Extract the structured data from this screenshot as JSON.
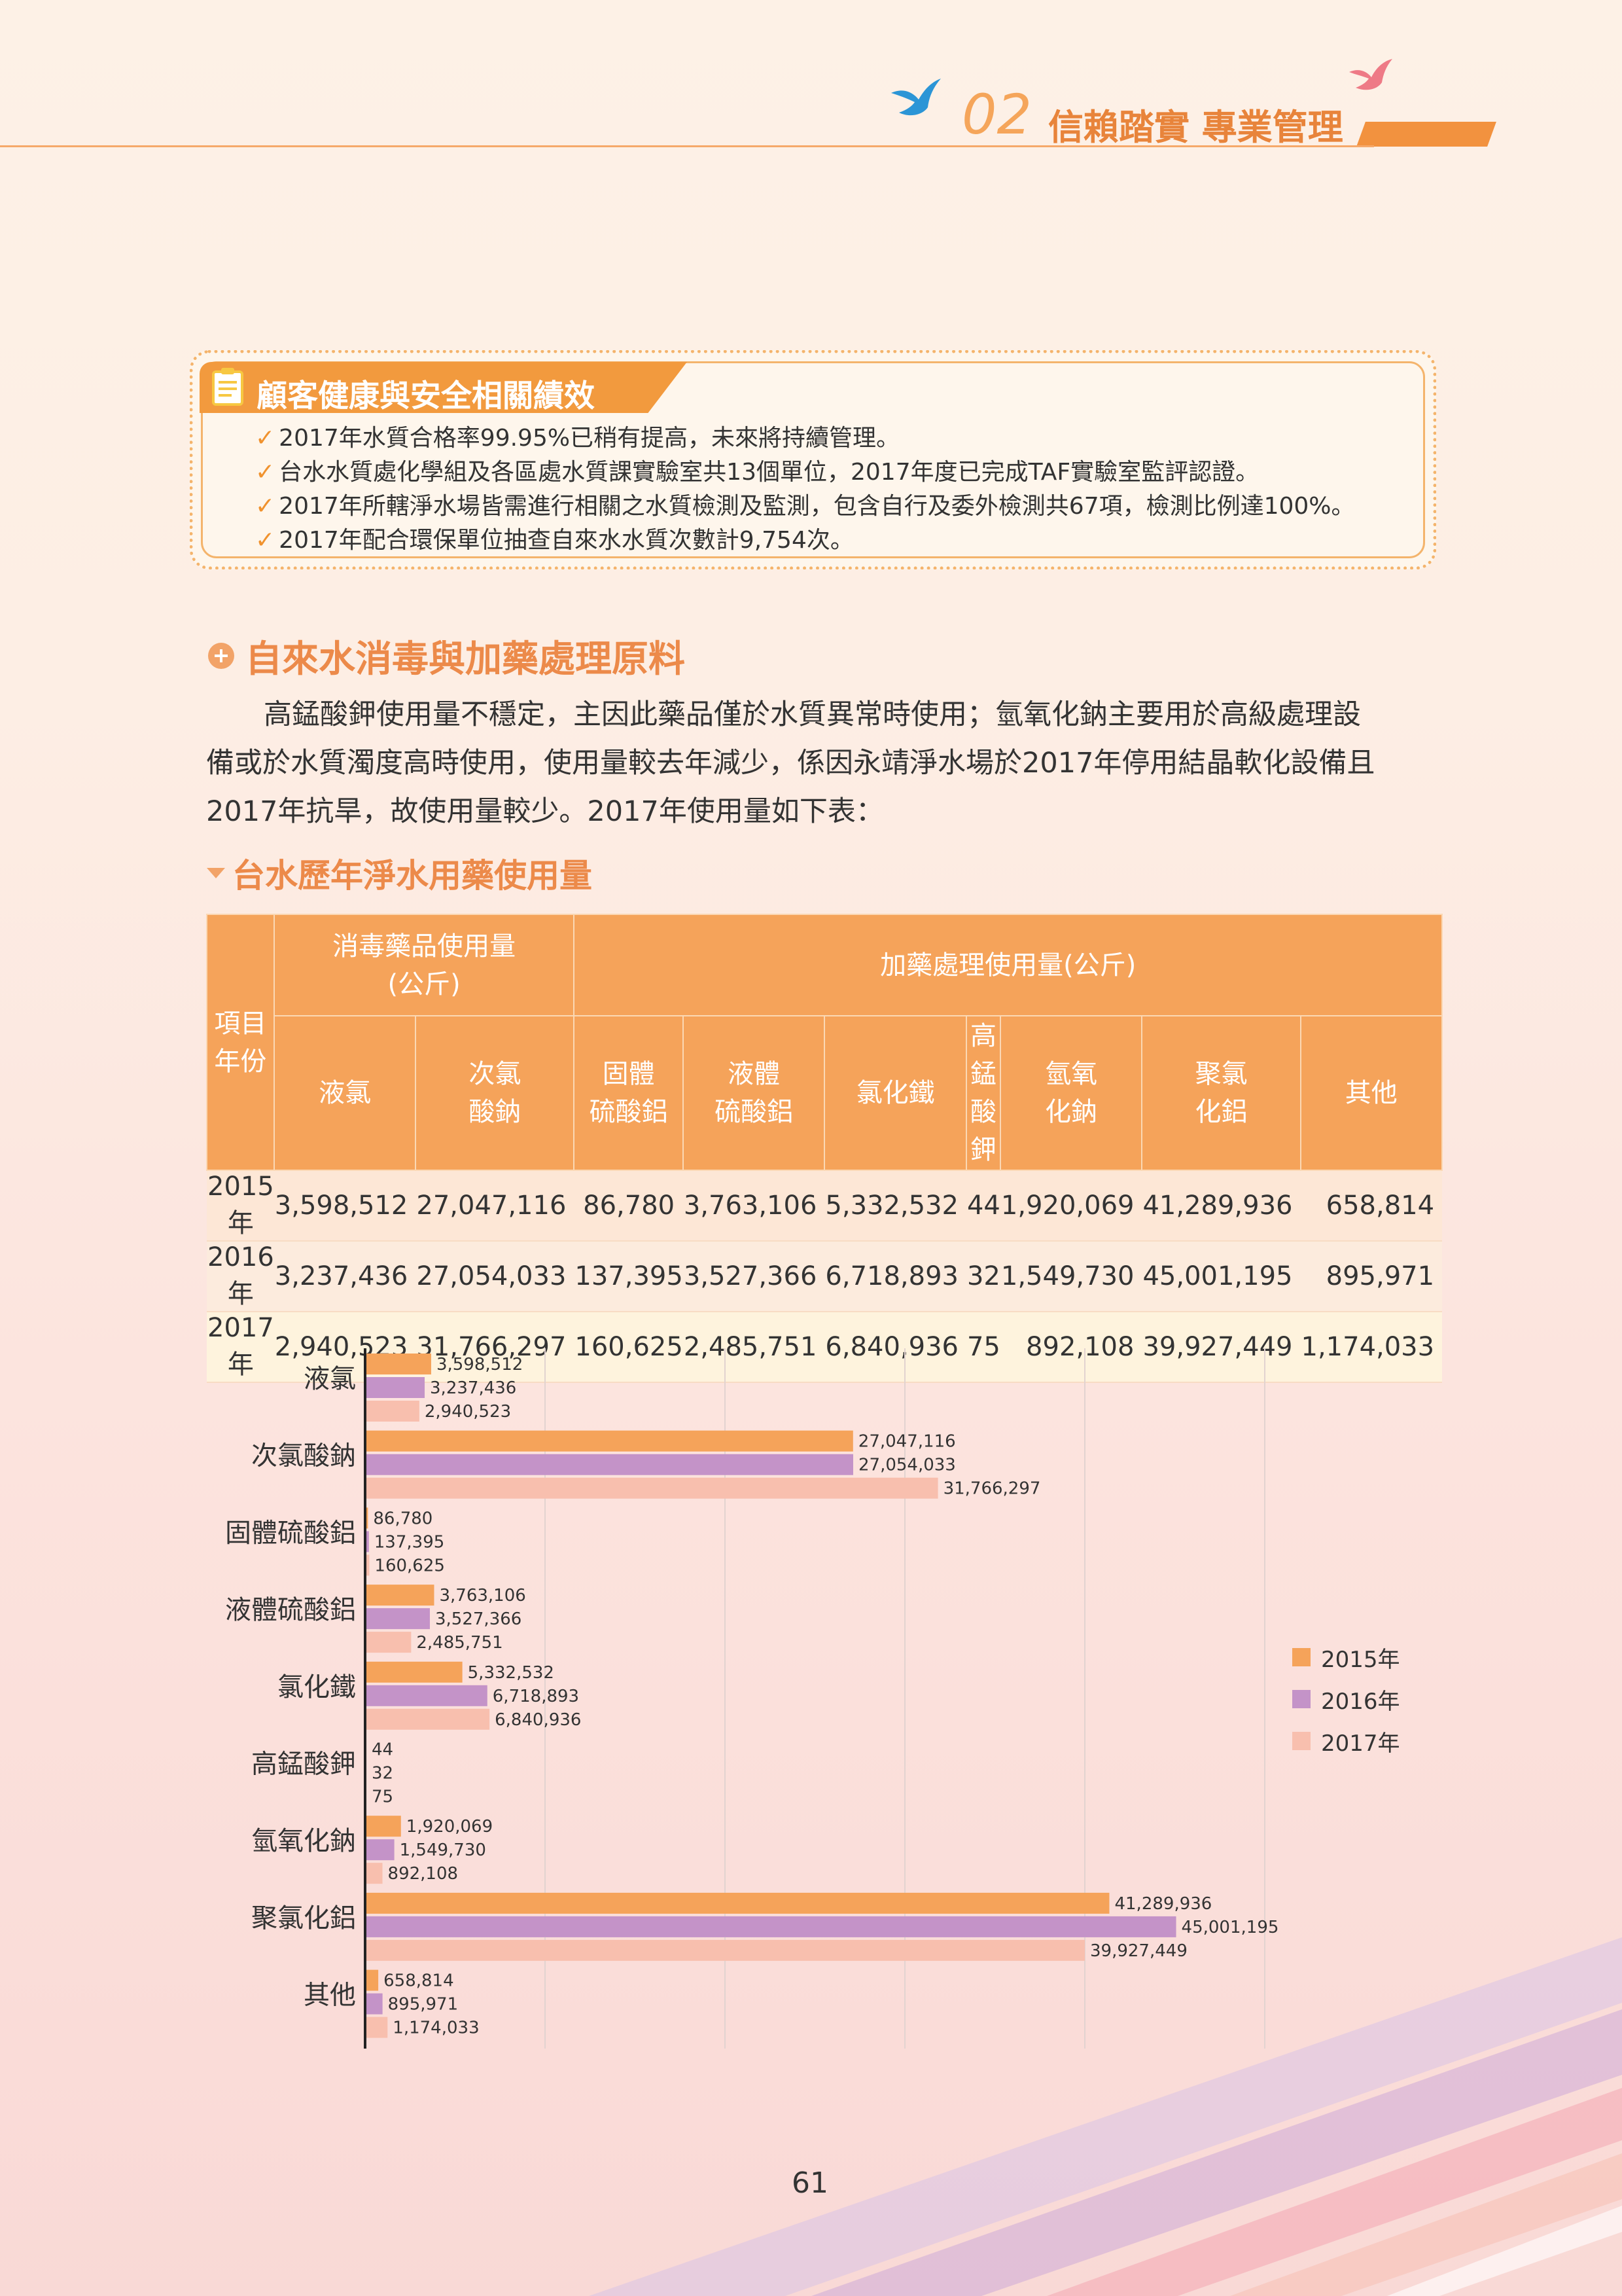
{
  "header": {
    "chapter_num": "02",
    "chapter_title": "信賴踏實 專業管理"
  },
  "performance": {
    "title": "顧客健康與安全相關績效",
    "items": [
      "2017年水質合格率99.95%已稍有提高，未來將持續管理。",
      "台水水質處化學組及各區處水質課實驗室共13個單位，2017年度已完成TAF實驗室監評認證。",
      "2017年所轄淨水場皆需進行相關之水質檢測及監測，包含自行及委外檢測共67項，檢測比例達100%。",
      "2017年配合環保單位抽查自來水水質次數計9,754次。"
    ]
  },
  "section": {
    "title": "自來水消毒與加藥處理原料",
    "para_lines": [
      "高錳酸鉀使用量不穩定，主因此藥品僅於水質異常時使用；氫氧化鈉主要用於高級處理設",
      "備或於水質濁度高時使用，使用量較去年減少，係因永靖淨水場於2017年停用結晶軟化設備且",
      "2017年抗旱，故使用量較少。2017年使用量如下表："
    ]
  },
  "table": {
    "title": "台水歷年淨水用藥使用量",
    "corner": [
      "項目",
      "年份"
    ],
    "group1": [
      "消毒藥品使用量",
      "(公斤)"
    ],
    "group2": "加藥處理使用量(公斤)",
    "columns": [
      [
        "液氯"
      ],
      [
        "次氯",
        "酸鈉"
      ],
      [
        "固體",
        "硫酸鋁"
      ],
      [
        "液體",
        "硫酸鋁"
      ],
      [
        "氯化鐵"
      ],
      [
        "高錳",
        "酸鉀"
      ],
      [
        "氫氧",
        "化鈉"
      ],
      [
        "聚氯",
        "化鋁"
      ],
      [
        "其他"
      ]
    ],
    "rows": [
      {
        "year": "2015年",
        "values": [
          "3,598,512",
          "27,047,116",
          "86,780",
          "3,763,106",
          "5,332,532",
          "44",
          "1,920,069",
          "41,289,936",
          "658,814"
        ]
      },
      {
        "year": "2016年",
        "values": [
          "3,237,436",
          "27,054,033",
          "137,395",
          "3,527,366",
          "6,718,893",
          "32",
          "1,549,730",
          "45,001,195",
          "895,971"
        ]
      },
      {
        "year": "2017年",
        "values": [
          "2,940,523",
          "31,766,297",
          "160,625",
          "2,485,751",
          "6,840,936",
          "75",
          "892,108",
          "39,927,449",
          "1,174,033"
        ]
      }
    ]
  },
  "chart_data": {
    "type": "bar",
    "orientation": "horizontal",
    "categories": [
      "液氯",
      "次氯酸鈉",
      "固體硫酸鋁",
      "液體硫酸鋁",
      "氯化鐵",
      "高錳酸鉀",
      "氫氧化鈉",
      "聚氯化鋁",
      "其他"
    ],
    "series": [
      {
        "name": "2015年",
        "color": "#f5a35a",
        "values": [
          3598512,
          27047116,
          86780,
          3763106,
          5332532,
          44,
          1920069,
          41289936,
          658814
        ]
      },
      {
        "name": "2016年",
        "color": "#c493c8",
        "values": [
          3237436,
          27054033,
          137395,
          3527366,
          6718893,
          32,
          1549730,
          45001195,
          895971
        ]
      },
      {
        "name": "2017年",
        "color": "#f8bfae",
        "values": [
          2940523,
          31766297,
          160625,
          2485751,
          6840936,
          75,
          892108,
          39927449,
          1174033
        ]
      }
    ],
    "value_labels": [
      [
        "3,598,512",
        "3,237,436",
        "2,940,523"
      ],
      [
        "27,047,116",
        "27,054,033",
        "31,766,297"
      ],
      [
        "86,780",
        "137,395",
        "160,625"
      ],
      [
        "3,763,106",
        "3,527,366",
        "2,485,751"
      ],
      [
        "5,332,532",
        "6,718,893",
        "6,840,936"
      ],
      [
        "44",
        "32",
        "75"
      ],
      [
        "1,920,069",
        "1,549,730",
        "892,108"
      ],
      [
        "41,289,936",
        "45,001,195",
        "39,927,449"
      ],
      [
        "658,814",
        "895,971",
        "1,174,033"
      ]
    ],
    "xlim": [
      0,
      50000000
    ],
    "grid": true,
    "legend_position": "right"
  },
  "page_number": "61"
}
